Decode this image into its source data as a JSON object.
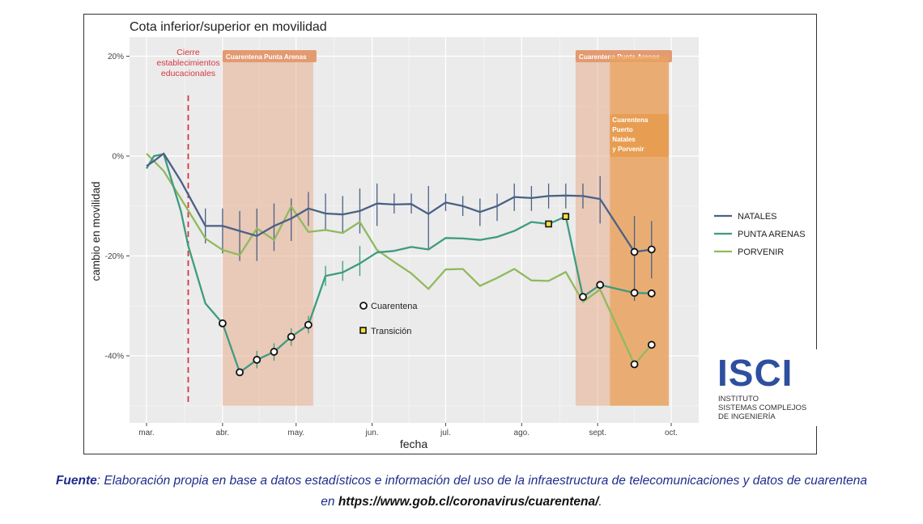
{
  "chart_data": {
    "type": "line",
    "title": "Cota inferior/superior en movilidad",
    "xlabel": "fecha",
    "ylabel": "cambio en movilidad",
    "x_ticks": [
      "mar.",
      "abr.",
      "may.",
      "jun.",
      "jul.",
      "ago.",
      "sept.",
      "oct."
    ],
    "y_ticks": [
      "20%",
      "0%",
      "-20%",
      "-40%"
    ],
    "ylim": [
      -54,
      22
    ],
    "grid": true,
    "legend_position": "right",
    "series": [
      {
        "name": "NATALES",
        "color": "#4a6186",
        "values": [
          [
            "2020-03-01",
            -2
          ],
          [
            "2020-03-04",
            -1
          ],
          [
            "2020-03-08",
            0.5
          ],
          [
            "2020-03-15",
            -5
          ],
          [
            "2020-03-25",
            -14
          ],
          [
            "2020-04-01",
            -14
          ],
          [
            "2020-04-08",
            -15
          ],
          [
            "2020-04-15",
            -16
          ],
          [
            "2020-04-22",
            -14
          ],
          [
            "2020-04-29",
            -12.5
          ],
          [
            "2020-05-06",
            -10.5
          ],
          [
            "2020-05-13",
            -11.5
          ],
          [
            "2020-05-20",
            -11.7
          ],
          [
            "2020-05-27",
            -11
          ],
          [
            "2020-06-03",
            -9.5
          ],
          [
            "2020-06-10",
            -9.7
          ],
          [
            "2020-06-17",
            -9.6
          ],
          [
            "2020-06-24",
            -11.6
          ],
          [
            "2020-07-01",
            -9.3
          ],
          [
            "2020-07-08",
            -10
          ],
          [
            "2020-07-15",
            -11.2
          ],
          [
            "2020-07-22",
            -10
          ],
          [
            "2020-07-29",
            -8.2
          ],
          [
            "2020-08-05",
            -8.4
          ],
          [
            "2020-08-12",
            -8
          ],
          [
            "2020-08-19",
            -7.9
          ],
          [
            "2020-08-26",
            -8
          ],
          [
            "2020-09-02",
            -8.6
          ],
          [
            "2020-09-16",
            -19.2
          ],
          [
            "2020-09-23",
            -18.7
          ]
        ]
      },
      {
        "name": "PUNTA ARENAS",
        "color": "#3f9b80",
        "values": [
          [
            "2020-03-01",
            -2.5
          ],
          [
            "2020-03-04",
            0
          ],
          [
            "2020-03-08",
            0.4
          ],
          [
            "2020-03-15",
            -11
          ],
          [
            "2020-03-18",
            -18
          ],
          [
            "2020-03-25",
            -29.5
          ],
          [
            "2020-04-01",
            -33.5
          ],
          [
            "2020-04-08",
            -43.3
          ],
          [
            "2020-04-15",
            -40.8
          ],
          [
            "2020-04-22",
            -39.2
          ],
          [
            "2020-04-29",
            -36.2
          ],
          [
            "2020-05-06",
            -33.8
          ],
          [
            "2020-05-13",
            -24
          ],
          [
            "2020-05-20",
            -23.3
          ],
          [
            "2020-05-27",
            -21.5
          ],
          [
            "2020-06-03",
            -19.3
          ],
          [
            "2020-06-10",
            -19
          ],
          [
            "2020-06-17",
            -18.2
          ],
          [
            "2020-06-24",
            -18.7
          ],
          [
            "2020-07-01",
            -16.4
          ],
          [
            "2020-07-08",
            -16.5
          ],
          [
            "2020-07-15",
            -16.8
          ],
          [
            "2020-07-22",
            -16.2
          ],
          [
            "2020-07-29",
            -15
          ],
          [
            "2020-08-05",
            -13.2
          ],
          [
            "2020-08-12",
            -13.6
          ],
          [
            "2020-08-19",
            -12.1
          ],
          [
            "2020-08-26",
            -28.2
          ],
          [
            "2020-09-02",
            -25.8
          ],
          [
            "2020-09-16",
            -27.4
          ],
          [
            "2020-09-23",
            -27.5
          ]
        ]
      },
      {
        "name": "PORVENIR",
        "color": "#8fba5e",
        "values": [
          [
            "2020-03-01",
            0.5
          ],
          [
            "2020-03-08",
            -3
          ],
          [
            "2020-03-15",
            -8.5
          ],
          [
            "2020-03-25",
            -16.5
          ],
          [
            "2020-04-01",
            -18.8
          ],
          [
            "2020-04-08",
            -19.8
          ],
          [
            "2020-04-15",
            -14.5
          ],
          [
            "2020-04-22",
            -16.8
          ],
          [
            "2020-04-29",
            -10.1
          ],
          [
            "2020-05-06",
            -15.2
          ],
          [
            "2020-05-13",
            -14.8
          ],
          [
            "2020-05-20",
            -15.4
          ],
          [
            "2020-05-27",
            -13.2
          ],
          [
            "2020-06-03",
            -18.8
          ],
          [
            "2020-06-10",
            -21.2
          ],
          [
            "2020-06-17",
            -23.5
          ],
          [
            "2020-06-24",
            -26.6
          ],
          [
            "2020-07-01",
            -22.7
          ],
          [
            "2020-07-08",
            -22.6
          ],
          [
            "2020-07-15",
            -26
          ],
          [
            "2020-07-22",
            -24.4
          ],
          [
            "2020-07-29",
            -22.6
          ],
          [
            "2020-08-05",
            -24.9
          ],
          [
            "2020-08-12",
            -25
          ],
          [
            "2020-08-19",
            -23.2
          ],
          [
            "2020-08-26",
            -29.2
          ],
          [
            "2020-09-02",
            -26.7
          ],
          [
            "2020-09-16",
            -41.7
          ],
          [
            "2020-09-23",
            -37.8
          ]
        ]
      }
    ],
    "error_bars": [
      {
        "series": "NATALES",
        "bars": [
          [
            "2020-03-25",
            -10.5,
            -17.5
          ],
          [
            "2020-04-01",
            -10.5,
            -19.5
          ],
          [
            "2020-04-08",
            -11,
            -21
          ],
          [
            "2020-04-15",
            -10.5,
            -21
          ],
          [
            "2020-04-22",
            -9.5,
            -19
          ],
          [
            "2020-04-29",
            -8.5,
            -17
          ],
          [
            "2020-05-06",
            -7.2,
            -14
          ],
          [
            "2020-05-13",
            -7.5,
            -15
          ],
          [
            "2020-05-20",
            -8,
            -15.5
          ],
          [
            "2020-05-27",
            -6.5,
            -15.5
          ],
          [
            "2020-06-03",
            -5.5,
            -14
          ],
          [
            "2020-06-10",
            -7.5,
            -11.5
          ],
          [
            "2020-06-17",
            -7.5,
            -11.5
          ],
          [
            "2020-06-24",
            -6,
            -18.7
          ],
          [
            "2020-07-01",
            -7.5,
            -11
          ],
          [
            "2020-07-08",
            -8,
            -12
          ],
          [
            "2020-07-15",
            -8.5,
            -14
          ],
          [
            "2020-07-22",
            -7.5,
            -13
          ],
          [
            "2020-07-29",
            -5.5,
            -11
          ],
          [
            "2020-08-05",
            -6,
            -11
          ],
          [
            "2020-08-12",
            -5.5,
            -10.5
          ],
          [
            "2020-08-19",
            -5.5,
            -10.5
          ],
          [
            "2020-08-26",
            -5.5,
            -10.5
          ],
          [
            "2020-09-02",
            -4,
            -13.5
          ],
          [
            "2020-09-16",
            -12,
            -29
          ],
          [
            "2020-09-23",
            -13,
            -24.5
          ]
        ]
      },
      {
        "series": "PUNTA ARENAS",
        "bars": [
          [
            "2020-04-15",
            -39,
            -42.5
          ],
          [
            "2020-04-22",
            -37.5,
            -41
          ],
          [
            "2020-04-29",
            -34.5,
            -38
          ],
          [
            "2020-05-06",
            -32,
            -35.5
          ],
          [
            "2020-05-13",
            -22,
            -26
          ],
          [
            "2020-05-20",
            -21,
            -25
          ],
          [
            "2020-05-27",
            -18,
            -24
          ]
        ]
      }
    ],
    "quarantine_markers": [
      {
        "series": "PUNTA ARENAS",
        "dates": [
          "2020-04-01",
          "2020-04-08",
          "2020-04-15",
          "2020-04-22",
          "2020-04-29",
          "2020-05-06",
          "2020-08-26",
          "2020-09-02",
          "2020-09-16",
          "2020-09-23"
        ]
      },
      {
        "series": "NATALES",
        "dates": [
          "2020-09-16",
          "2020-09-23"
        ]
      },
      {
        "series": "PORVENIR",
        "dates": [
          "2020-09-16",
          "2020-09-23"
        ]
      }
    ],
    "transition_markers": [
      {
        "series": "PUNTA ARENAS",
        "dates": [
          "2020-08-12",
          "2020-08-19"
        ]
      }
    ],
    "shaded_periods": [
      {
        "label": "Cuarentena Punta Arenas",
        "start": "2020-04-01",
        "end": "2020-05-08",
        "color": "#e8ad8c"
      },
      {
        "label": "Cuarentena Punta Arenas",
        "start": "2020-08-23",
        "end": "2020-09-30",
        "color": "#e8ad8c"
      },
      {
        "label_lines": [
          "Cuarentena",
          "Puerto",
          "Natales",
          "y Porvenir"
        ],
        "start": "2020-09-06",
        "end": "2020-09-30",
        "color": "#e8a35e"
      }
    ],
    "event_line": {
      "date": "2020-03-18",
      "label_lines": [
        "Cierre",
        "establecimientos",
        "educacionales"
      ],
      "color": "#d9363e"
    },
    "marker_legend": {
      "quarantine": "Cuarentena",
      "transition": "Transición"
    }
  },
  "logo": {
    "mark": "ISCI",
    "lines": [
      "INSTITUTO",
      "SISTEMAS COMPLEJOS",
      "DE INGENIERÍA"
    ]
  },
  "source_note": {
    "label": "Fuente",
    "text": ": Elaboración propia en base a datos estadísticos e información del uso de la infraestructura de telecomunicaciones y datos de cuarentena en ",
    "url": "https://www.gob.cl/coronavirus/cuarentena/",
    "end": "."
  }
}
